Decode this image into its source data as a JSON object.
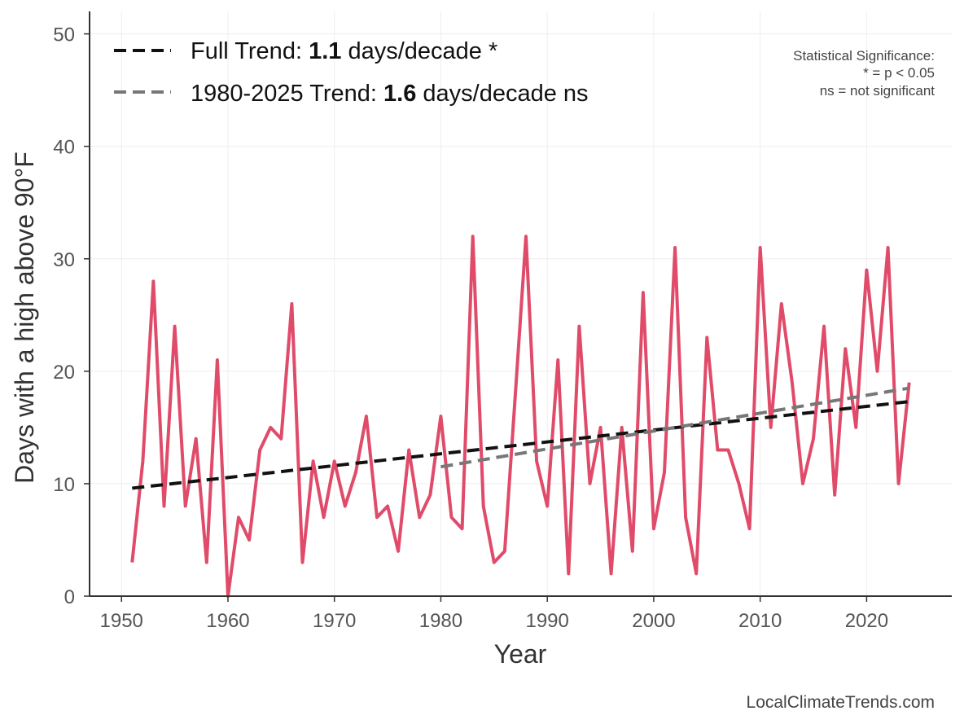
{
  "chart_data": {
    "type": "line",
    "xlabel": "Year",
    "ylabel": "Days with a high above 90°F",
    "xlim": [
      1947,
      2028
    ],
    "ylim": [
      0,
      52
    ],
    "x_ticks": [
      1950,
      1960,
      1970,
      1980,
      1990,
      2000,
      2010,
      2020
    ],
    "y_ticks": [
      0,
      10,
      20,
      30,
      40,
      50
    ],
    "grid": true,
    "series": [
      {
        "color": "#e04b6a",
        "x": [
          1951,
          1952,
          1953,
          1954,
          1955,
          1956,
          1957,
          1958,
          1959,
          1960,
          1961,
          1962,
          1963,
          1964,
          1965,
          1966,
          1967,
          1968,
          1969,
          1970,
          1971,
          1972,
          1973,
          1974,
          1975,
          1976,
          1977,
          1978,
          1979,
          1980,
          1981,
          1982,
          1983,
          1984,
          1985,
          1986,
          1987,
          1988,
          1989,
          1990,
          1991,
          1992,
          1993,
          1994,
          1995,
          1996,
          1997,
          1998,
          1999,
          2000,
          2001,
          2002,
          2003,
          2004,
          2005,
          2006,
          2007,
          2008,
          2009,
          2010,
          2011,
          2012,
          2013,
          2014,
          2015,
          2016,
          2017,
          2018,
          2019,
          2020,
          2021,
          2022,
          2023,
          2024
        ],
        "y": [
          3,
          12,
          28,
          8,
          24,
          8,
          14,
          3,
          21,
          0,
          7,
          5,
          13,
          15,
          14,
          26,
          3,
          12,
          7,
          12,
          8,
          11,
          16,
          7,
          8,
          4,
          13,
          7,
          9,
          16,
          7,
          6,
          32,
          8,
          3,
          4,
          18,
          32,
          12,
          8,
          21,
          2,
          24,
          10,
          15,
          2,
          15,
          4,
          27,
          6,
          11,
          31,
          7,
          2,
          23,
          13,
          13,
          10,
          6,
          31,
          15,
          26,
          19,
          10,
          14,
          24,
          9,
          22,
          15,
          29,
          20,
          31,
          10,
          19
        ]
      }
    ],
    "trends": [
      {
        "label_prefix": "Full Trend: ",
        "label_value": "1.1",
        "label_suffix": " days/decade *",
        "color": "#111111",
        "x": [
          1951,
          2024
        ],
        "y": [
          9.6,
          17.3
        ]
      },
      {
        "label_prefix": "1980-2025 Trend: ",
        "label_value": "1.6",
        "label_suffix": " days/decade ns",
        "color": "#777777",
        "x": [
          1980,
          2024
        ],
        "y": [
          11.5,
          18.5
        ]
      }
    ],
    "legend_position": "top-left",
    "annotation": {
      "lines": [
        "Statistical Significance:",
        "* = p < 0.05",
        "ns = not significant"
      ],
      "position": "top-right"
    },
    "credit": "LocalClimateTrends.com"
  }
}
